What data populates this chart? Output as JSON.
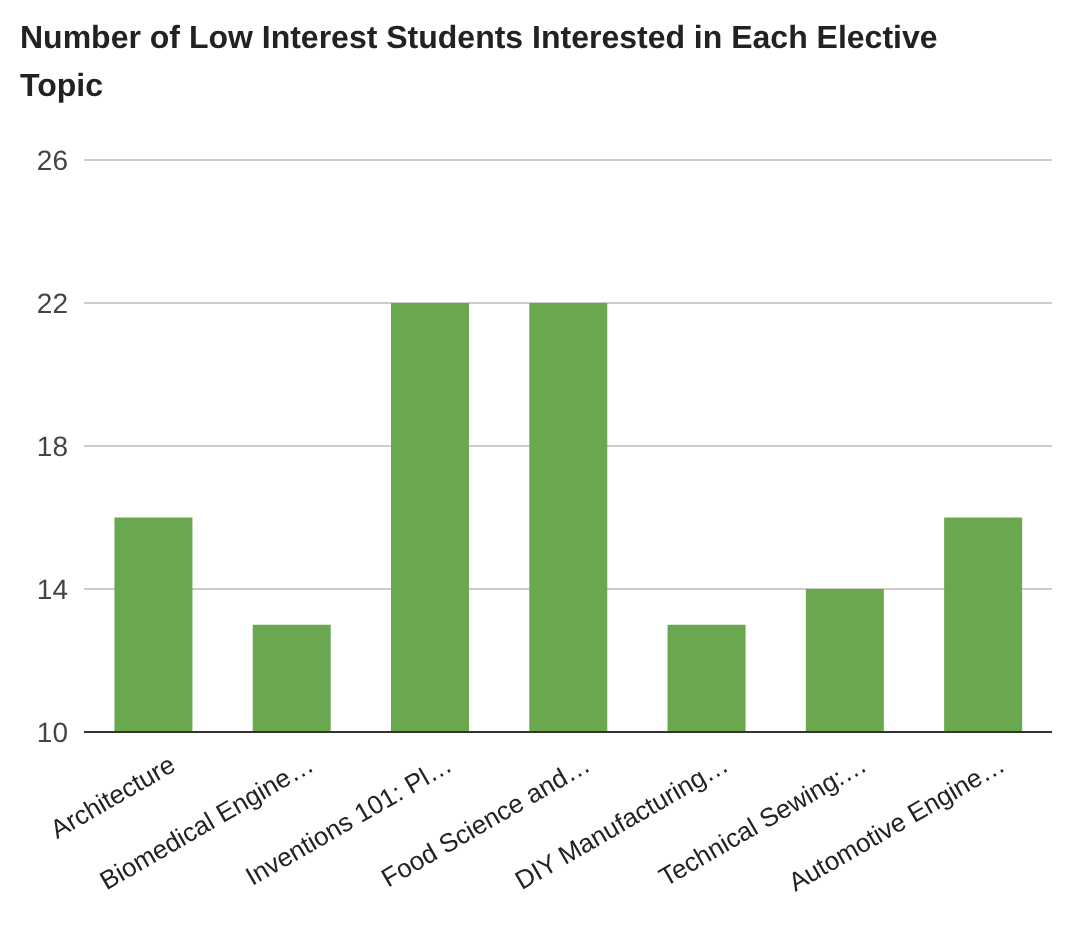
{
  "chart_data": {
    "type": "bar",
    "title": "Number of Low Interest Students Interested in Each Elective Topic",
    "categories": [
      "Architecture",
      "Biomedical Engine…",
      "Inventions 101: Pl…",
      "Food Science and…",
      "DIY Manufacturing…",
      "Technical Sewing:…",
      "Automotive Engine…"
    ],
    "values": [
      16,
      13,
      22,
      22,
      13,
      14,
      16
    ],
    "color": "#6aa84f",
    "ylim": [
      10,
      26
    ],
    "yticks": [
      10,
      14,
      18,
      22,
      26
    ],
    "grid": "y"
  }
}
